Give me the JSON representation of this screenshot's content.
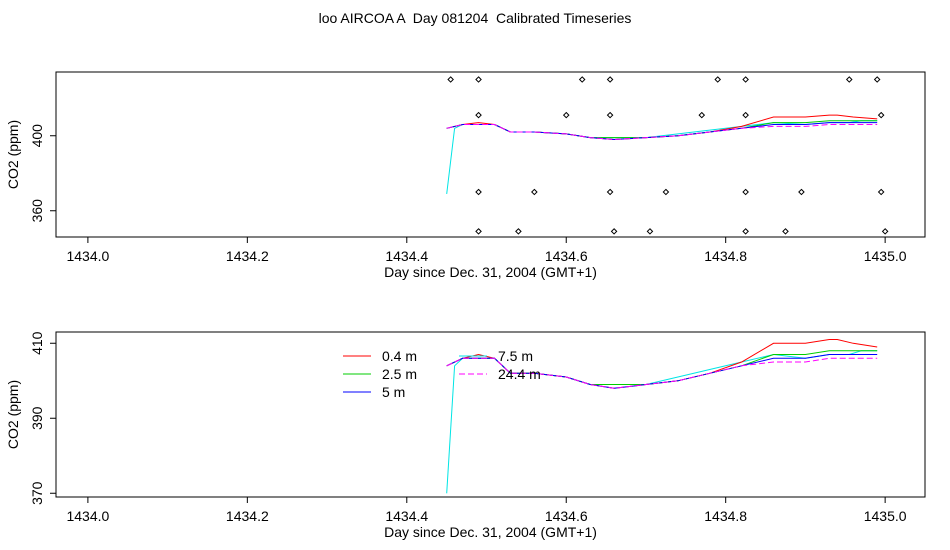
{
  "title": "loo AIRCOA A  Day 081204  Calibrated Timeseries",
  "colors": {
    "0.4 m": "#ff0000",
    "2.5 m": "#00cc00",
    "5 m": "#0000ff",
    "7.5 m": "#00e5e5",
    "24.4 m": "#ff00ff"
  },
  "chart_data": [
    {
      "type": "line",
      "panel": "top",
      "xlabel": "Day since Dec. 31, 2004 (GMT+1)",
      "ylabel": "CO2 (ppm)",
      "xlim": [
        1433.96,
        1435.05
      ],
      "ylim": [
        346,
        434
      ],
      "xticks": [
        1434.0,
        1434.2,
        1434.4,
        1434.6,
        1434.8,
        1435.0
      ],
      "xtick_labels": [
        "1434.0",
        "1434.2",
        "1434.4",
        "1434.6",
        "1434.8",
        "1435.0"
      ],
      "yticks": [
        360,
        400
      ],
      "ytick_labels": [
        "360",
        "400"
      ],
      "grid": false,
      "series": [
        {
          "name": "7.5 m",
          "x": [
            1434.45,
            1434.46,
            1434.47,
            1434.49,
            1434.51,
            1434.53,
            1434.56,
            1434.6,
            1434.63,
            1434.66,
            1434.7,
            1434.74,
            1434.78,
            1434.82,
            1434.86,
            1434.9,
            1434.93,
            1434.955,
            1434.97,
            1434.99
          ],
          "y": [
            369,
            404,
            406,
            406,
            406,
            402,
            402,
            401,
            399,
            399,
            399,
            401,
            403,
            405,
            407,
            406,
            407,
            407,
            408,
            408
          ]
        },
        {
          "name": "0.4 m",
          "x": [
            1434.45,
            1434.47,
            1434.49,
            1434.51,
            1434.53,
            1434.56,
            1434.6,
            1434.63,
            1434.66,
            1434.7,
            1434.74,
            1434.78,
            1434.82,
            1434.86,
            1434.9,
            1434.93,
            1434.94,
            1434.96,
            1434.99
          ],
          "y": [
            404,
            406,
            407,
            406,
            402,
            402,
            401,
            399,
            398,
            399,
            400,
            402,
            405,
            410,
            410,
            411,
            411,
            410,
            409
          ]
        },
        {
          "name": "2.5 m",
          "x": [
            1434.45,
            1434.47,
            1434.49,
            1434.51,
            1434.53,
            1434.56,
            1434.6,
            1434.63,
            1434.66,
            1434.7,
            1434.74,
            1434.78,
            1434.82,
            1434.86,
            1434.9,
            1434.93,
            1434.96,
            1434.99
          ],
          "y": [
            404,
            406,
            406,
            406,
            402,
            402,
            401,
            399,
            399,
            399,
            400,
            402,
            404,
            407,
            407,
            408,
            408,
            408
          ]
        },
        {
          "name": "5 m",
          "x": [
            1434.45,
            1434.47,
            1434.49,
            1434.51,
            1434.53,
            1434.56,
            1434.6,
            1434.63,
            1434.66,
            1434.7,
            1434.74,
            1434.78,
            1434.82,
            1434.86,
            1434.9,
            1434.93,
            1434.96,
            1434.99
          ],
          "y": [
            404,
            406,
            406,
            406,
            402,
            402,
            401,
            399,
            398,
            399,
            400,
            402,
            404,
            406,
            406,
            407,
            407,
            407
          ]
        },
        {
          "name": "24.4 m",
          "x": [
            1434.45,
            1434.47,
            1434.49,
            1434.51,
            1434.53,
            1434.56,
            1434.6,
            1434.63,
            1434.66,
            1434.7,
            1434.74,
            1434.78,
            1434.82,
            1434.86,
            1434.9,
            1434.93,
            1434.96,
            1434.99
          ],
          "y": [
            404,
            406,
            406,
            406,
            402,
            402,
            401,
            399,
            398,
            399,
            400,
            402,
            404,
            405,
            405,
            406,
            406,
            406
          ]
        }
      ],
      "markers": {
        "style": "open-diamond",
        "rows": [
          {
            "y": 430,
            "x": [
              1434.455,
              1434.49,
              1434.62,
              1434.655,
              1434.79,
              1434.825,
              1434.955,
              1434.99
            ]
          },
          {
            "y": 411,
            "x": [
              1434.49,
              1434.6,
              1434.655,
              1434.77,
              1434.825,
              1434.995
            ]
          },
          {
            "y": 370,
            "x": [
              1434.49,
              1434.56,
              1434.655,
              1434.725,
              1434.825,
              1434.895,
              1434.995
            ]
          },
          {
            "y": 349,
            "x": [
              1434.49,
              1434.54,
              1434.66,
              1434.705,
              1434.825,
              1434.875,
              1435.0
            ]
          }
        ]
      }
    },
    {
      "type": "line",
      "panel": "bottom",
      "xlabel": "Day since Dec. 31, 2004 (GMT+1)",
      "ylabel": "CO2 (ppm)",
      "xlim": [
        1433.96,
        1435.05
      ],
      "ylim": [
        369,
        413
      ],
      "xticks": [
        1434.0,
        1434.2,
        1434.4,
        1434.6,
        1434.8,
        1435.0
      ],
      "xtick_labels": [
        "1434.0",
        "1434.2",
        "1434.4",
        "1434.6",
        "1434.8",
        "1435.0"
      ],
      "yticks": [
        370,
        390,
        410
      ],
      "ytick_labels": [
        "370",
        "390",
        "410"
      ],
      "grid": false,
      "legend": {
        "placement": "top-center",
        "columns": [
          [
            "0.4 m",
            "2.5 m",
            "5 m"
          ],
          [
            "7.5 m",
            "24.4 m"
          ]
        ]
      },
      "series": [
        {
          "name": "7.5 m",
          "x": [
            1434.45,
            1434.46,
            1434.47,
            1434.49,
            1434.51,
            1434.53,
            1434.56,
            1434.6,
            1434.63,
            1434.66,
            1434.7,
            1434.74,
            1434.78,
            1434.82,
            1434.86,
            1434.9,
            1434.93,
            1434.955,
            1434.97,
            1434.99
          ],
          "y": [
            370,
            404,
            406,
            406,
            406,
            402,
            402,
            401,
            399,
            399,
            399,
            401,
            403,
            405,
            407,
            406,
            407,
            407,
            408,
            408
          ]
        },
        {
          "name": "0.4 m",
          "x": [
            1434.45,
            1434.47,
            1434.49,
            1434.51,
            1434.53,
            1434.56,
            1434.6,
            1434.63,
            1434.66,
            1434.7,
            1434.74,
            1434.78,
            1434.82,
            1434.86,
            1434.9,
            1434.93,
            1434.94,
            1434.96,
            1434.99
          ],
          "y": [
            404,
            406,
            407,
            406,
            402,
            402,
            401,
            399,
            398,
            399,
            400,
            402,
            405,
            410,
            410,
            411,
            411,
            410,
            409
          ]
        },
        {
          "name": "2.5 m",
          "x": [
            1434.45,
            1434.47,
            1434.49,
            1434.51,
            1434.53,
            1434.56,
            1434.6,
            1434.63,
            1434.66,
            1434.7,
            1434.74,
            1434.78,
            1434.82,
            1434.86,
            1434.9,
            1434.93,
            1434.96,
            1434.99
          ],
          "y": [
            404,
            406,
            406,
            406,
            402,
            402,
            401,
            399,
            399,
            399,
            400,
            402,
            404,
            407,
            407,
            408,
            408,
            408
          ]
        },
        {
          "name": "5 m",
          "x": [
            1434.45,
            1434.47,
            1434.49,
            1434.51,
            1434.53,
            1434.56,
            1434.6,
            1434.63,
            1434.66,
            1434.7,
            1434.74,
            1434.78,
            1434.82,
            1434.86,
            1434.9,
            1434.93,
            1434.96,
            1434.99
          ],
          "y": [
            404,
            406,
            406,
            406,
            402,
            402,
            401,
            399,
            398,
            399,
            400,
            402,
            404,
            406,
            406,
            407,
            407,
            407
          ]
        },
        {
          "name": "24.4 m",
          "x": [
            1434.45,
            1434.47,
            1434.49,
            1434.51,
            1434.53,
            1434.56,
            1434.6,
            1434.63,
            1434.66,
            1434.7,
            1434.74,
            1434.78,
            1434.82,
            1434.86,
            1434.9,
            1434.93,
            1434.96,
            1434.99
          ],
          "y": [
            404,
            406,
            406,
            406,
            402,
            402,
            401,
            399,
            398,
            399,
            400,
            402,
            404,
            405,
            405,
            406,
            406,
            406
          ]
        }
      ]
    }
  ]
}
